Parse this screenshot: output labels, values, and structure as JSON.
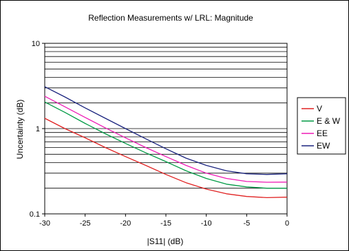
{
  "chart_data": {
    "type": "line",
    "title": "Reflection Measurements w/ LRL: Magnitude",
    "xlabel": "|S11| (dB)",
    "ylabel": "Uncertainty (dB)",
    "xlim": [
      -30,
      0
    ],
    "ylim": [
      0.1,
      10
    ],
    "yscale": "log",
    "x_ticks": [
      "-30",
      "-25",
      "-20",
      "-15",
      "-10",
      "-5",
      "0"
    ],
    "y_ticks": [
      "0.1",
      "1",
      "10"
    ],
    "grid": "horizontal",
    "legend_position": "right",
    "x": [
      -30,
      -27.5,
      -25,
      -22.5,
      -20,
      -17.5,
      -15,
      -12.5,
      -10,
      -7.5,
      -5,
      -2.5,
      0
    ],
    "series": [
      {
        "name": "V",
        "color": "#e02020",
        "values": [
          1.32,
          1.0,
          0.78,
          0.6,
          0.47,
          0.37,
          0.29,
          0.232,
          0.195,
          0.172,
          0.16,
          0.155,
          0.157
        ]
      },
      {
        "name": "E & W",
        "color": "#009a44",
        "values": [
          2.05,
          1.55,
          1.15,
          0.87,
          0.67,
          0.52,
          0.41,
          0.32,
          0.26,
          0.223,
          0.207,
          0.2,
          0.2
        ]
      },
      {
        "name": "EE",
        "color": "#ee1ab5",
        "values": [
          2.4,
          1.8,
          1.35,
          1.02,
          0.78,
          0.6,
          0.47,
          0.37,
          0.3,
          0.26,
          0.24,
          0.235,
          0.236
        ]
      },
      {
        "name": "EW",
        "color": "#1a237e",
        "values": [
          3.1,
          2.35,
          1.75,
          1.32,
          1.0,
          0.76,
          0.58,
          0.45,
          0.37,
          0.32,
          0.295,
          0.29,
          0.295
        ]
      }
    ]
  }
}
